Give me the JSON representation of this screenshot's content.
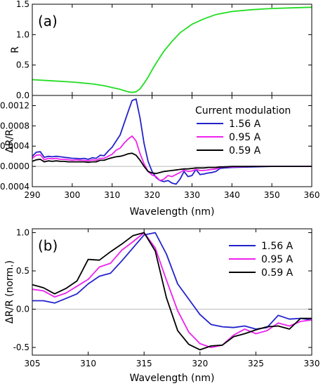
{
  "chart_data": [
    {
      "panel_label": "(a)",
      "type": "line",
      "ylabel": "R",
      "xlim": [
        290,
        360
      ],
      "ylim": [
        0,
        1.5
      ],
      "yticks": [
        "0.0",
        "0.5",
        "1.0",
        "1.5"
      ],
      "grid": false,
      "series": [
        {
          "color": "#22dd22",
          "x": [
            290,
            295,
            300,
            305,
            308,
            310,
            312,
            313,
            314,
            315,
            316,
            317,
            318,
            319,
            320,
            321,
            322,
            323,
            325,
            327,
            330,
            333,
            336,
            340,
            345,
            350,
            355,
            360
          ],
          "y": [
            0.26,
            0.24,
            0.22,
            0.19,
            0.16,
            0.13,
            0.1,
            0.08,
            0.06,
            0.05,
            0.06,
            0.11,
            0.2,
            0.3,
            0.42,
            0.53,
            0.63,
            0.73,
            0.89,
            1.03,
            1.17,
            1.26,
            1.33,
            1.38,
            1.41,
            1.43,
            1.44,
            1.45
          ]
        }
      ]
    },
    {
      "type": "line",
      "ylabel": "ΔR/R",
      "xlabel": "Wavelength (nm)",
      "xlim": [
        290,
        360
      ],
      "ylim": [
        -0.0004,
        0.0014
      ],
      "xticks": [
        "290",
        "300",
        "310",
        "320",
        "330",
        "340",
        "350",
        "360"
      ],
      "yticks": [
        "-0.0004",
        "0.0000",
        "0.0004",
        "0.0008",
        "0.0012"
      ],
      "zero_line": true,
      "grid": false,
      "legend_title": "Current modulation",
      "legend_position": "top-right",
      "series": [
        {
          "name": "1.56 A",
          "color": "#2222cc",
          "x": [
            290,
            291,
            292,
            293,
            294,
            295,
            296,
            297,
            298,
            299,
            300,
            301,
            302,
            303,
            304,
            305,
            306,
            307,
            308,
            309,
            310,
            311,
            312,
            313,
            314,
            315,
            316,
            317,
            318,
            319,
            320,
            321,
            322,
            323,
            324,
            325,
            326,
            327,
            328,
            329,
            330,
            331,
            332,
            333,
            334,
            335,
            336,
            337,
            338,
            340,
            345,
            350,
            355,
            360
          ],
          "y": [
            0.0002,
            0.00028,
            0.00029,
            0.00018,
            0.0002,
            0.00019,
            0.0002,
            0.00019,
            0.00018,
            0.00017,
            0.00016,
            0.00016,
            0.00015,
            0.00016,
            0.00014,
            0.00017,
            0.00016,
            0.00022,
            0.00021,
            0.0003,
            0.00038,
            0.0005,
            0.00062,
            0.00085,
            0.00108,
            0.0013,
            0.00133,
            0.00095,
            0.00045,
            0.0001,
            -0.0001,
            -0.00022,
            -0.00028,
            -0.0003,
            -0.00028,
            -0.00033,
            -0.00035,
            -0.00025,
            -0.0001,
            -0.0002,
            -0.00018,
            -6e-05,
            -0.00016,
            -0.00015,
            -0.00013,
            -0.00012,
            -0.0001,
            -4e-05,
            -3e-05,
            -2e-05,
            -1e-05,
            0.0,
            0.0,
            0.0
          ]
        },
        {
          "name": "0.95 A",
          "color": "#ee22ee",
          "x": [
            290,
            291,
            292,
            293,
            294,
            295,
            296,
            297,
            298,
            299,
            300,
            301,
            302,
            303,
            304,
            305,
            306,
            307,
            308,
            309,
            310,
            311,
            312,
            313,
            314,
            315,
            316,
            317,
            318,
            319,
            320,
            321,
            322,
            323,
            324,
            325,
            326,
            327,
            328,
            329,
            330,
            331,
            332,
            333,
            334,
            335,
            336,
            337,
            338,
            340,
            345,
            350,
            355,
            360
          ],
          "y": [
            0.00016,
            0.00022,
            0.00023,
            0.00013,
            0.00016,
            0.00015,
            0.00016,
            0.00014,
            0.00014,
            0.00013,
            0.00012,
            0.00013,
            0.00012,
            0.00012,
            0.00011,
            0.00013,
            0.00012,
            0.00016,
            0.00016,
            0.0002,
            0.00024,
            0.00032,
            0.00036,
            0.00046,
            0.00054,
            0.0006,
            0.0005,
            0.00025,
            5e-05,
            -0.0001,
            -0.00017,
            -0.0002,
            -0.00028,
            -0.00025,
            -0.00018,
            -0.0002,
            -0.00016,
            -0.00012,
            -7e-05,
            -0.0001,
            -9e-05,
            -6e-05,
            -8e-05,
            -8e-05,
            -7e-05,
            -6e-05,
            -5e-05,
            -2e-05,
            -1e-05,
            -1e-05,
            0.0,
            0.0,
            0.0,
            0.0
          ]
        },
        {
          "name": "0.59 A",
          "color": "#000000",
          "x": [
            290,
            291,
            292,
            293,
            294,
            295,
            296,
            297,
            298,
            299,
            300,
            301,
            302,
            303,
            304,
            305,
            306,
            307,
            308,
            309,
            310,
            311,
            312,
            313,
            314,
            315,
            316,
            317,
            318,
            319,
            320,
            321,
            322,
            323,
            324,
            325,
            326,
            327,
            328,
            329,
            330,
            331,
            332,
            333,
            334,
            335,
            336,
            337,
            338,
            340,
            345,
            350,
            355,
            360
          ],
          "y": [
            0.0001,
            0.00013,
            0.00014,
            9e-05,
            0.00011,
            0.0001,
            0.00011,
            0.0001,
            0.0001,
            9e-05,
            9e-05,
            9e-05,
            9e-05,
            9e-05,
            8e-05,
            9e-05,
            9e-05,
            0.00012,
            0.00012,
            0.00015,
            0.00017,
            0.00019,
            0.0002,
            0.00022,
            0.00025,
            0.00026,
            0.00022,
            0.00012,
            0.0,
            -0.0001,
            -0.00013,
            -0.00014,
            -0.00012,
            -0.0001,
            -9e-05,
            -8e-05,
            -7e-05,
            -6e-05,
            -5e-05,
            -5e-05,
            -4e-05,
            -3e-05,
            -3e-05,
            -3e-05,
            -2e-05,
            -2e-05,
            -2e-05,
            -1e-05,
            -1e-05,
            0.0,
            0.0,
            0.0,
            0.0,
            0.0
          ]
        }
      ]
    },
    {
      "panel_label": "(b)",
      "type": "line",
      "ylabel": "ΔR/R (norm.)",
      "xlabel": "Wavelength (nm)",
      "xlim": [
        305,
        330
      ],
      "ylim": [
        -0.6,
        1.05
      ],
      "xticks": [
        "305",
        "310",
        "315",
        "320",
        "325",
        "330"
      ],
      "yticks": [
        "-0.5",
        "0.0",
        "0.5",
        "1.0"
      ],
      "zero_line": true,
      "grid": false,
      "legend_position": "top-right",
      "series": [
        {
          "name": "1.56 A",
          "color": "#2222cc",
          "x": [
            305,
            306,
            307,
            308,
            309,
            310,
            311,
            312,
            313,
            314,
            315,
            316,
            317,
            318,
            319,
            320,
            321,
            322,
            323,
            324,
            325,
            326,
            327,
            328,
            329,
            330
          ],
          "y": [
            0.11,
            0.11,
            0.08,
            0.14,
            0.2,
            0.33,
            0.43,
            0.47,
            0.63,
            0.8,
            0.97,
            1.0,
            0.72,
            0.33,
            0.13,
            -0.07,
            -0.2,
            -0.23,
            -0.24,
            -0.22,
            -0.26,
            -0.24,
            -0.08,
            -0.13,
            -0.12,
            -0.14
          ]
        },
        {
          "name": "0.95 A",
          "color": "#ee22ee",
          "x": [
            305,
            306,
            307,
            308,
            309,
            310,
            311,
            312,
            313,
            314,
            315,
            316,
            317,
            318,
            319,
            320,
            321,
            322,
            323,
            324,
            325,
            326,
            327,
            328,
            329,
            330
          ],
          "y": [
            0.26,
            0.24,
            0.16,
            0.21,
            0.3,
            0.39,
            0.55,
            0.6,
            0.77,
            0.88,
            1.0,
            0.8,
            0.38,
            -0.02,
            -0.3,
            -0.45,
            -0.5,
            -0.47,
            -0.34,
            -0.26,
            -0.32,
            -0.28,
            -0.18,
            -0.22,
            -0.16,
            -0.14
          ]
        },
        {
          "name": "0.59 A",
          "color": "#000000",
          "x": [
            305,
            306,
            307,
            308,
            309,
            310,
            311,
            312,
            313,
            314,
            315,
            316,
            317,
            318,
            319,
            320,
            321,
            322,
            323,
            324,
            325,
            326,
            327,
            328,
            329,
            330
          ],
          "y": [
            0.32,
            0.28,
            0.2,
            0.27,
            0.37,
            0.65,
            0.64,
            0.75,
            0.85,
            0.96,
            1.0,
            0.76,
            0.15,
            -0.28,
            -0.46,
            -0.53,
            -0.48,
            -0.47,
            -0.36,
            -0.32,
            -0.27,
            -0.23,
            -0.22,
            -0.26,
            -0.12,
            -0.12
          ]
        }
      ]
    }
  ]
}
